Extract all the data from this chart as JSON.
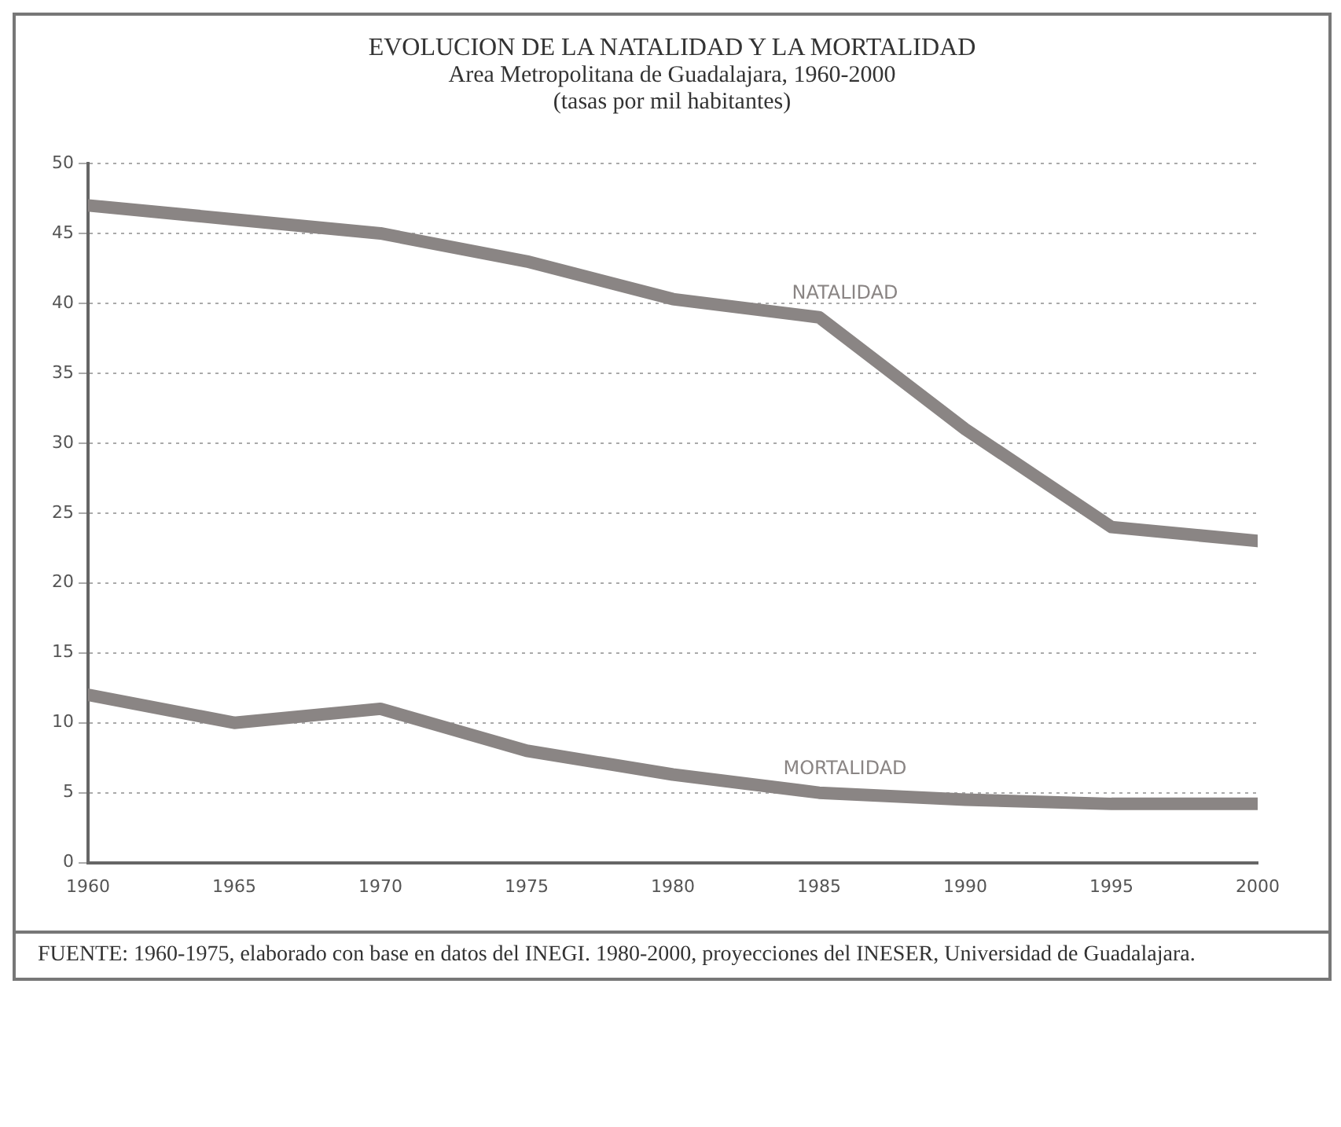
{
  "chart_data": {
    "type": "line",
    "title": "EVOLUCION DE LA NATALIDAD Y LA MORTALIDAD",
    "subtitle": "Area Metropolitana de Guadalajara, 1960-2000",
    "annotations": [
      "(tasas por mil habitantes)",
      "FUENTE: 1960-1975, elaborado con base en datos del INEGI. 1980-2000, proyecciones del INESER, Universidad de Guadalajara."
    ],
    "x": [
      1960,
      1965,
      1970,
      1975,
      1980,
      1985,
      1990,
      1995,
      2000
    ],
    "series": [
      {
        "name": "NATALIDAD",
        "color": "#8a8584",
        "values": [
          47,
          46,
          45,
          43,
          40.3,
          39,
          31,
          24,
          23
        ]
      },
      {
        "name": "MORTALIDAD",
        "color": "#8a8584",
        "values": [
          12,
          10,
          11,
          8,
          6.3,
          5,
          4.5,
          4.2,
          4.2
        ]
      }
    ],
    "xlim": [
      1960,
      2000
    ],
    "xticks": [
      1960,
      1965,
      1970,
      1975,
      1980,
      1985,
      1990,
      1995,
      2000
    ],
    "ylim": [
      0,
      50
    ],
    "yticks": [
      0,
      5,
      10,
      15,
      20,
      25,
      30,
      35,
      40,
      45,
      50
    ],
    "grid": "y",
    "legend": false,
    "marker": "none",
    "line_style": "solid"
  }
}
